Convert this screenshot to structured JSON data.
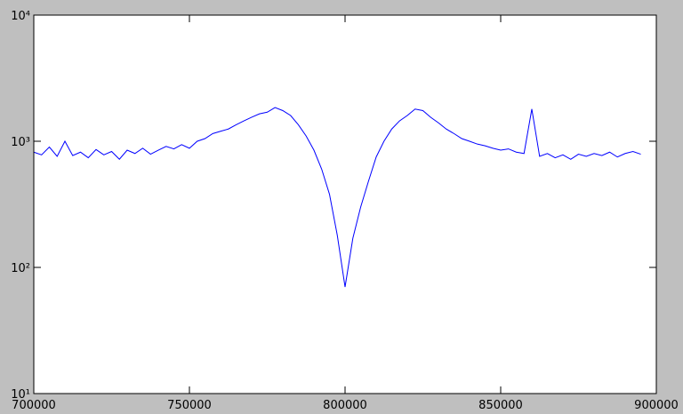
{
  "chart_data": {
    "type": "line",
    "log_y": true,
    "color": "#0000ff",
    "x": [
      700000,
      702500,
      705000,
      707500,
      710000,
      712500,
      715000,
      717500,
      720000,
      722500,
      725000,
      727500,
      730000,
      732500,
      735000,
      737500,
      740000,
      742500,
      745000,
      747500,
      750000,
      752500,
      755000,
      757500,
      760000,
      762500,
      765000,
      767500,
      770000,
      772500,
      775000,
      777500,
      780000,
      782500,
      785000,
      787500,
      790000,
      792500,
      795000,
      797500,
      800000,
      802500,
      805000,
      807500,
      810000,
      812500,
      815000,
      817500,
      820000,
      822500,
      825000,
      827500,
      830000,
      832500,
      835000,
      837500,
      840000,
      842500,
      845000,
      847500,
      850000,
      852500,
      855000,
      857500,
      860000,
      862500,
      865000,
      867500,
      870000,
      872500,
      875000,
      877500,
      880000,
      882500,
      885000,
      887500,
      890000,
      892500,
      895000
    ],
    "values": [
      820,
      780,
      900,
      760,
      1000,
      770,
      820,
      740,
      860,
      780,
      830,
      720,
      850,
      800,
      880,
      790,
      850,
      910,
      870,
      940,
      880,
      1000,
      1050,
      1150,
      1200,
      1250,
      1350,
      1450,
      1550,
      1650,
      1700,
      1850,
      1750,
      1600,
      1350,
      1100,
      850,
      600,
      380,
      180,
      70,
      170,
      300,
      480,
      750,
      1000,
      1250,
      1450,
      1600,
      1800,
      1750,
      1550,
      1400,
      1250,
      1150,
      1050,
      1000,
      950,
      920,
      880,
      850,
      870,
      820,
      800,
      1800,
      760,
      800,
      740,
      780,
      720,
      790,
      760,
      800,
      770,
      820,
      750,
      800,
      830,
      790
    ],
    "xlim": [
      700000,
      900000
    ],
    "xticks": [
      700000,
      750000,
      800000,
      850000,
      900000
    ],
    "ylim": [
      10,
      10000
    ],
    "yticks": [
      {
        "value": 10,
        "label": "10¹"
      },
      {
        "value": 100,
        "label": "10²"
      },
      {
        "value": 1000,
        "label": "10³"
      },
      {
        "value": 10000,
        "label": "10⁴"
      }
    ]
  }
}
